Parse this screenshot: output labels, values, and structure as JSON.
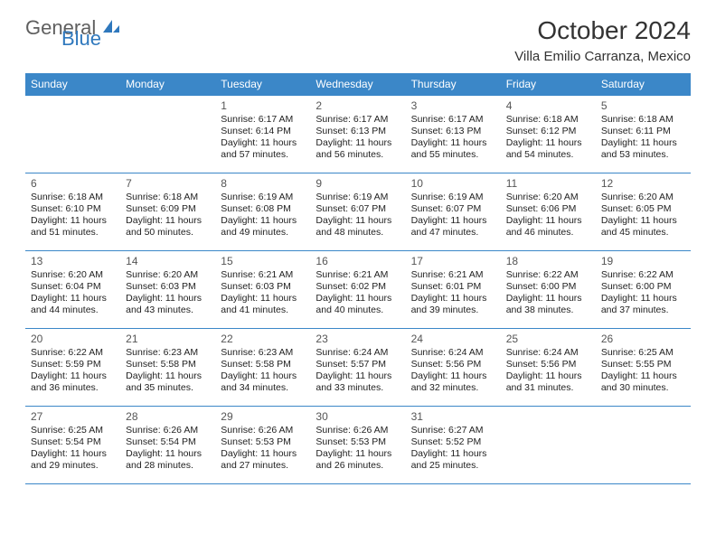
{
  "brand": {
    "part1": "General",
    "part2": "Blue"
  },
  "title": "October 2024",
  "location": "Villa Emilio Carranza, Mexico",
  "colors": {
    "header_bg": "#3b87c8",
    "header_text": "#ffffff",
    "border": "#3b87c8",
    "daynum": "#555555",
    "body_text": "#222222",
    "brand_gray": "#5f5f5f",
    "brand_blue": "#2f78bd"
  },
  "day_names": [
    "Sunday",
    "Monday",
    "Tuesday",
    "Wednesday",
    "Thursday",
    "Friday",
    "Saturday"
  ],
  "weeks": [
    [
      null,
      null,
      {
        "n": "1",
        "sr": "Sunrise: 6:17 AM",
        "ss": "Sunset: 6:14 PM",
        "d1": "Daylight: 11 hours",
        "d2": "and 57 minutes."
      },
      {
        "n": "2",
        "sr": "Sunrise: 6:17 AM",
        "ss": "Sunset: 6:13 PM",
        "d1": "Daylight: 11 hours",
        "d2": "and 56 minutes."
      },
      {
        "n": "3",
        "sr": "Sunrise: 6:17 AM",
        "ss": "Sunset: 6:13 PM",
        "d1": "Daylight: 11 hours",
        "d2": "and 55 minutes."
      },
      {
        "n": "4",
        "sr": "Sunrise: 6:18 AM",
        "ss": "Sunset: 6:12 PM",
        "d1": "Daylight: 11 hours",
        "d2": "and 54 minutes."
      },
      {
        "n": "5",
        "sr": "Sunrise: 6:18 AM",
        "ss": "Sunset: 6:11 PM",
        "d1": "Daylight: 11 hours",
        "d2": "and 53 minutes."
      }
    ],
    [
      {
        "n": "6",
        "sr": "Sunrise: 6:18 AM",
        "ss": "Sunset: 6:10 PM",
        "d1": "Daylight: 11 hours",
        "d2": "and 51 minutes."
      },
      {
        "n": "7",
        "sr": "Sunrise: 6:18 AM",
        "ss": "Sunset: 6:09 PM",
        "d1": "Daylight: 11 hours",
        "d2": "and 50 minutes."
      },
      {
        "n": "8",
        "sr": "Sunrise: 6:19 AM",
        "ss": "Sunset: 6:08 PM",
        "d1": "Daylight: 11 hours",
        "d2": "and 49 minutes."
      },
      {
        "n": "9",
        "sr": "Sunrise: 6:19 AM",
        "ss": "Sunset: 6:07 PM",
        "d1": "Daylight: 11 hours",
        "d2": "and 48 minutes."
      },
      {
        "n": "10",
        "sr": "Sunrise: 6:19 AM",
        "ss": "Sunset: 6:07 PM",
        "d1": "Daylight: 11 hours",
        "d2": "and 47 minutes."
      },
      {
        "n": "11",
        "sr": "Sunrise: 6:20 AM",
        "ss": "Sunset: 6:06 PM",
        "d1": "Daylight: 11 hours",
        "d2": "and 46 minutes."
      },
      {
        "n": "12",
        "sr": "Sunrise: 6:20 AM",
        "ss": "Sunset: 6:05 PM",
        "d1": "Daylight: 11 hours",
        "d2": "and 45 minutes."
      }
    ],
    [
      {
        "n": "13",
        "sr": "Sunrise: 6:20 AM",
        "ss": "Sunset: 6:04 PM",
        "d1": "Daylight: 11 hours",
        "d2": "and 44 minutes."
      },
      {
        "n": "14",
        "sr": "Sunrise: 6:20 AM",
        "ss": "Sunset: 6:03 PM",
        "d1": "Daylight: 11 hours",
        "d2": "and 43 minutes."
      },
      {
        "n": "15",
        "sr": "Sunrise: 6:21 AM",
        "ss": "Sunset: 6:03 PM",
        "d1": "Daylight: 11 hours",
        "d2": "and 41 minutes."
      },
      {
        "n": "16",
        "sr": "Sunrise: 6:21 AM",
        "ss": "Sunset: 6:02 PM",
        "d1": "Daylight: 11 hours",
        "d2": "and 40 minutes."
      },
      {
        "n": "17",
        "sr": "Sunrise: 6:21 AM",
        "ss": "Sunset: 6:01 PM",
        "d1": "Daylight: 11 hours",
        "d2": "and 39 minutes."
      },
      {
        "n": "18",
        "sr": "Sunrise: 6:22 AM",
        "ss": "Sunset: 6:00 PM",
        "d1": "Daylight: 11 hours",
        "d2": "and 38 minutes."
      },
      {
        "n": "19",
        "sr": "Sunrise: 6:22 AM",
        "ss": "Sunset: 6:00 PM",
        "d1": "Daylight: 11 hours",
        "d2": "and 37 minutes."
      }
    ],
    [
      {
        "n": "20",
        "sr": "Sunrise: 6:22 AM",
        "ss": "Sunset: 5:59 PM",
        "d1": "Daylight: 11 hours",
        "d2": "and 36 minutes."
      },
      {
        "n": "21",
        "sr": "Sunrise: 6:23 AM",
        "ss": "Sunset: 5:58 PM",
        "d1": "Daylight: 11 hours",
        "d2": "and 35 minutes."
      },
      {
        "n": "22",
        "sr": "Sunrise: 6:23 AM",
        "ss": "Sunset: 5:58 PM",
        "d1": "Daylight: 11 hours",
        "d2": "and 34 minutes."
      },
      {
        "n": "23",
        "sr": "Sunrise: 6:24 AM",
        "ss": "Sunset: 5:57 PM",
        "d1": "Daylight: 11 hours",
        "d2": "and 33 minutes."
      },
      {
        "n": "24",
        "sr": "Sunrise: 6:24 AM",
        "ss": "Sunset: 5:56 PM",
        "d1": "Daylight: 11 hours",
        "d2": "and 32 minutes."
      },
      {
        "n": "25",
        "sr": "Sunrise: 6:24 AM",
        "ss": "Sunset: 5:56 PM",
        "d1": "Daylight: 11 hours",
        "d2": "and 31 minutes."
      },
      {
        "n": "26",
        "sr": "Sunrise: 6:25 AM",
        "ss": "Sunset: 5:55 PM",
        "d1": "Daylight: 11 hours",
        "d2": "and 30 minutes."
      }
    ],
    [
      {
        "n": "27",
        "sr": "Sunrise: 6:25 AM",
        "ss": "Sunset: 5:54 PM",
        "d1": "Daylight: 11 hours",
        "d2": "and 29 minutes."
      },
      {
        "n": "28",
        "sr": "Sunrise: 6:26 AM",
        "ss": "Sunset: 5:54 PM",
        "d1": "Daylight: 11 hours",
        "d2": "and 28 minutes."
      },
      {
        "n": "29",
        "sr": "Sunrise: 6:26 AM",
        "ss": "Sunset: 5:53 PM",
        "d1": "Daylight: 11 hours",
        "d2": "and 27 minutes."
      },
      {
        "n": "30",
        "sr": "Sunrise: 6:26 AM",
        "ss": "Sunset: 5:53 PM",
        "d1": "Daylight: 11 hours",
        "d2": "and 26 minutes."
      },
      {
        "n": "31",
        "sr": "Sunrise: 6:27 AM",
        "ss": "Sunset: 5:52 PM",
        "d1": "Daylight: 11 hours",
        "d2": "and 25 minutes."
      },
      null,
      null
    ]
  ]
}
